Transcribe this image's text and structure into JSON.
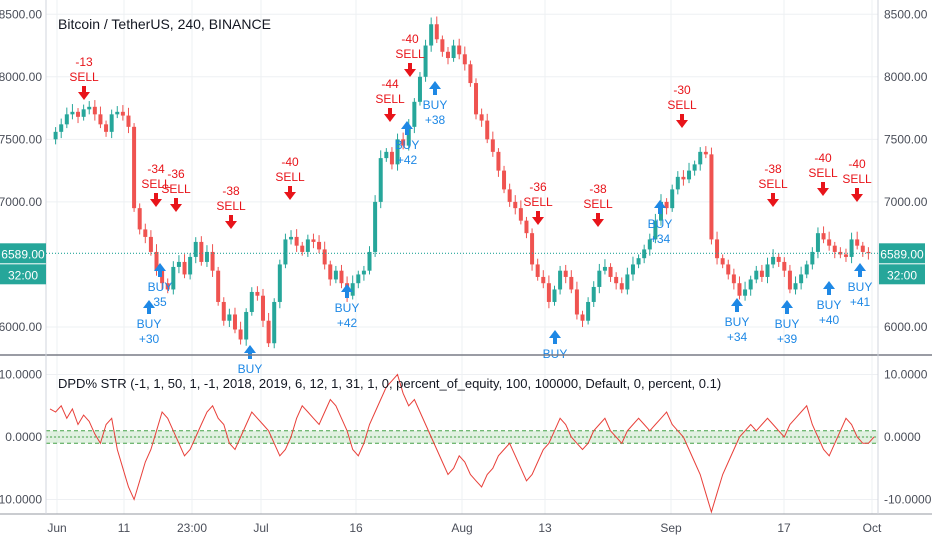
{
  "header": {
    "title": "Bitcoin / TetherUS, 240, BINANCE"
  },
  "indicator": {
    "title": "DPD% STR  (-1, 1, 50, 1, -1, 2018, 2019, 6, 12, 1, 31, 1, 0, percent_of_equity, 100, 100000, Default, 0, percent, 0.1)"
  },
  "price_axis": {
    "ticks": [
      "8500.00",
      "8000.00",
      "7500.00",
      "7000.00",
      "6000.00"
    ],
    "values": [
      8500,
      8000,
      7500,
      7000,
      6000
    ]
  },
  "indicator_axis": {
    "ticks": [
      "10.0000",
      "0.0000",
      "-10.0000"
    ],
    "values": [
      10,
      0,
      -10
    ]
  },
  "last_price": {
    "label": "6589.00",
    "countdown": "32:00",
    "value": 6589,
    "color": "#26a69a"
  },
  "time_axis": [
    "Jun",
    "11",
    "23:00",
    "Jul",
    "16",
    "Aug",
    "13",
    "Sep",
    "17",
    "Oct"
  ],
  "colors": {
    "sell": "#e8141a",
    "buy": "#1e88e5",
    "up": "#26a69a",
    "down": "#ef5350",
    "indicator": "#e8403a",
    "band": "#c8e6c9"
  },
  "chart_data": {
    "type": "candlestick",
    "ylim": [
      5800,
      8550
    ],
    "close_series": [
      7500,
      7560,
      7620,
      7700,
      7720,
      7680,
      7740,
      7760,
      7700,
      7620,
      7560,
      7700,
      7720,
      7690,
      7600,
      6950,
      6780,
      6720,
      6600,
      6450,
      6350,
      6300,
      6480,
      6520,
      6420,
      6560,
      6680,
      6520,
      6600,
      6450,
      6200,
      6050,
      6100,
      5980,
      5900,
      6120,
      6280,
      6250,
      6050,
      5870,
      6200,
      6500,
      6700,
      6720,
      6650,
      6600,
      6700,
      6680,
      6620,
      6500,
      6380,
      6450,
      6350,
      6250,
      6350,
      6420,
      6450,
      6600,
      7000,
      7350,
      7400,
      7300,
      7500,
      7450,
      7600,
      7800,
      8000,
      8250,
      8420,
      8300,
      8200,
      8150,
      8250,
      8180,
      8100,
      7950,
      7700,
      7650,
      7500,
      7400,
      7250,
      7100,
      7000,
      6950,
      6850,
      6750,
      6500,
      6400,
      6350,
      6200,
      6300,
      6450,
      6400,
      6300,
      6100,
      6050,
      6200,
      6320,
      6450,
      6480,
      6400,
      6350,
      6300,
      6420,
      6500,
      6550,
      6620,
      6700,
      6850,
      7000,
      6950,
      7100,
      7200,
      7180,
      7250,
      7300,
      7400,
      7380,
      6700,
      6550,
      6500,
      6420,
      6350,
      6250,
      6300,
      6380,
      6450,
      6400,
      6500,
      6560,
      6520,
      6450,
      6300,
      6350,
      6420,
      6500,
      6600,
      6750,
      6700,
      6650,
      6600,
      6580,
      6560,
      6700,
      6650,
      6600,
      6589
    ],
    "signals": [
      {
        "type": "SELL",
        "value": "-13"
      },
      {
        "type": "SELL",
        "value": "-34"
      },
      {
        "type": "SELL",
        "value": "-36"
      },
      {
        "type": "SELL",
        "value": "-38"
      },
      {
        "type": "SELL",
        "value": "-40"
      },
      {
        "type": "SELL",
        "value": "-44"
      },
      {
        "type": "SELL",
        "value": "-40"
      },
      {
        "type": "SELL",
        "value": "-36"
      },
      {
        "type": "SELL",
        "value": "-38"
      },
      {
        "type": "SELL",
        "value": "-30"
      },
      {
        "type": "SELL",
        "value": "-38"
      },
      {
        "type": "SELL",
        "value": "-40"
      },
      {
        "type": "SELL",
        "value": "-40"
      },
      {
        "type": "BUY",
        "value": "+30"
      },
      {
        "type": "BUY",
        "value": "35"
      },
      {
        "type": "BUY",
        "value": ""
      },
      {
        "type": "BUY",
        "value": "+42"
      },
      {
        "type": "BUY",
        "value": "+42"
      },
      {
        "type": "BUY",
        "value": "+38"
      },
      {
        "type": "BUY",
        "value": ""
      },
      {
        "type": "BUY",
        "value": "+34"
      },
      {
        "type": "BUY",
        "value": "+34"
      },
      {
        "type": "BUY",
        "value": "+39"
      },
      {
        "type": "BUY",
        "value": "+40"
      },
      {
        "type": "BUY",
        "value": "+41"
      }
    ],
    "indicator_ylim": [
      -12,
      12
    ],
    "indicator_band": [
      -1,
      1
    ],
    "indicator_series": [
      4.5,
      4,
      5,
      3,
      4.5,
      2,
      3.5,
      2.5,
      0.5,
      -1,
      2,
      3,
      -2,
      -5,
      -8,
      -10,
      -7,
      -4,
      -2,
      1,
      4,
      3,
      1,
      -1,
      -3,
      -2,
      0,
      2,
      4,
      5,
      3,
      2,
      -1,
      -2,
      0,
      2,
      4,
      3,
      2,
      1,
      -1,
      -3,
      -2,
      0,
      3,
      5,
      4,
      3,
      2,
      4,
      6,
      5,
      3,
      1,
      -2,
      -3,
      -1,
      2,
      4,
      6,
      8,
      9,
      10,
      7,
      5,
      6,
      4,
      2,
      0,
      -2,
      -4,
      -6,
      -5,
      -3,
      -4,
      -6,
      -7,
      -8,
      -6,
      -5,
      -3,
      -2,
      -1,
      -3,
      -5,
      -7,
      -6,
      -4,
      -2,
      -1,
      1,
      3,
      2,
      0,
      -1,
      -2,
      -1,
      1,
      2,
      3,
      1,
      0,
      -1,
      1,
      2,
      3,
      2,
      1,
      2,
      3,
      4,
      2,
      1,
      0,
      -2,
      -4,
      -6,
      -9,
      -12,
      -9,
      -6,
      -4,
      -2,
      0,
      1,
      2,
      1,
      2,
      3,
      2,
      1,
      0,
      2,
      3,
      4,
      5,
      2,
      0,
      -2,
      -3,
      -1,
      1,
      3,
      2,
      0,
      -1,
      -1,
      0
    ]
  }
}
